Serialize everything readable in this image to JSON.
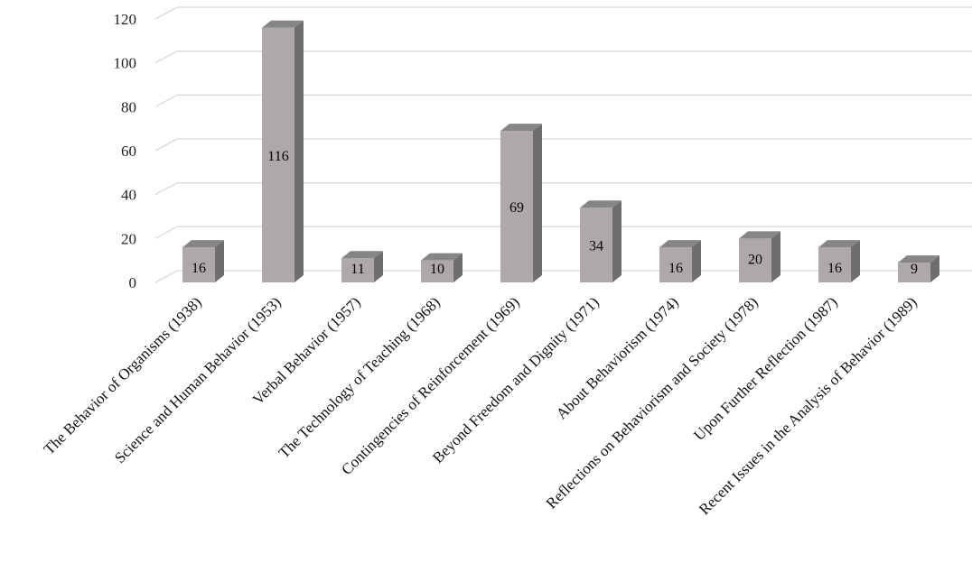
{
  "chart_data": {
    "type": "bar",
    "style": "3d-column",
    "title": "",
    "xlabel": "",
    "ylabel": "",
    "categories": [
      "The Behavior of Organisms (1938)",
      "Science and Human Behavior (1953)",
      "Verbal Behavior (1957)",
      "The Technology of Teaching (1968)",
      "Contingencies of Reinforcement (1969)",
      "Beyond Freedom and Dignity (1971)",
      "About Behaviorism (1974)",
      "Reflections on Behaviorism and Society (1978)",
      "Upon Further Reflection (1987)",
      "Recent Issues in the Analysis of Behavior (1989)"
    ],
    "values": [
      16,
      116,
      11,
      10,
      69,
      34,
      16,
      20,
      16,
      9
    ],
    "ylim": [
      0,
      120
    ],
    "yticks": [
      0,
      20,
      40,
      60,
      80,
      100,
      120
    ],
    "grid": true,
    "legend": "none",
    "colors": {
      "bar_front": "#ada9a8",
      "bar_side": "#6f6d6d",
      "bar_top": "#878585",
      "grid": "#d9d9d9"
    }
  }
}
